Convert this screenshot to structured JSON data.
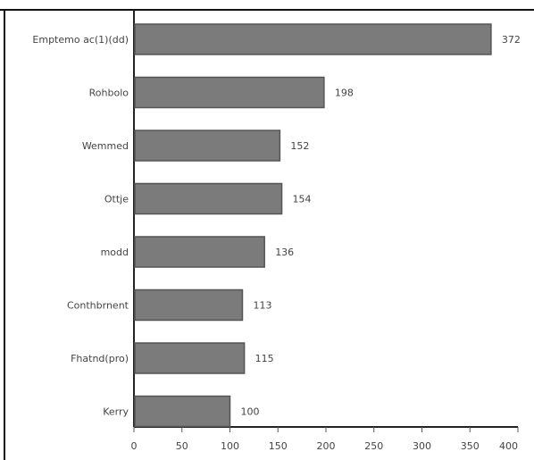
{
  "chart_data": {
    "type": "bar",
    "orientation": "horizontal",
    "categories": [
      "Emptemo ac(1)(dd)",
      "Rohbolo",
      "Wemmed",
      "Ottje",
      "modd",
      "Conthbrnent",
      "Fhatnd(pro)",
      "Kerry"
    ],
    "values": [
      372,
      198,
      152,
      154,
      136,
      113,
      115,
      100
    ],
    "value_labels": [
      "372",
      "198",
      "152",
      "154",
      "136",
      "113",
      "115",
      "100"
    ],
    "xlim": [
      0,
      400
    ],
    "xticks": [
      "0",
      "50",
      "100",
      "150",
      "200",
      "250",
      "300",
      "350",
      "400"
    ],
    "title": "",
    "xlabel": "",
    "ylabel": "",
    "grid": false,
    "bar_color": "#7b7b7b",
    "bar_edge_color": "#555555"
  }
}
